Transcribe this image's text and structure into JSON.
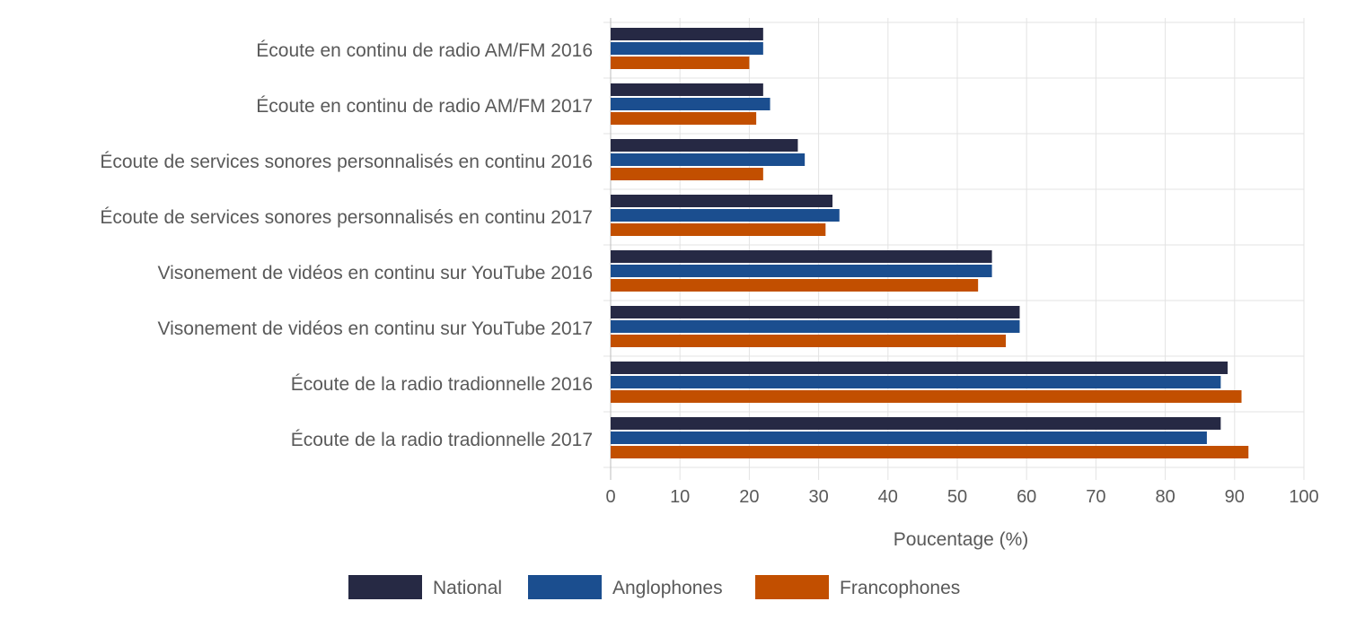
{
  "chart_data": {
    "type": "bar",
    "orientation": "horizontal",
    "categories": [
      "Écoute en continu de radio AM/FM 2016",
      "Écoute en continu de radio AM/FM 2017",
      "Écoute de services sonores personnalisés en continu 2016",
      "Écoute de services sonores personnalisés en continu 2017",
      "Visonement de vidéos en continu sur YouTube 2016",
      "Visonement de vidéos en continu sur YouTube 2017",
      "Écoute de la radio tradionnelle 2016",
      "Écoute de la radio tradionnelle 2017"
    ],
    "series": [
      {
        "name": "National",
        "color": "#262944",
        "values": [
          22,
          22,
          27,
          32,
          55,
          59,
          89,
          88
        ]
      },
      {
        "name": "Anglophones",
        "color": "#1b4e8f",
        "values": [
          22,
          23,
          28,
          33,
          55,
          59,
          88,
          86
        ]
      },
      {
        "name": "Francophones",
        "color": "#c24f00",
        "values": [
          20,
          21,
          22,
          31,
          53,
          57,
          91,
          92
        ]
      }
    ],
    "xlabel": "Poucentage (%)",
    "ylabel": "",
    "xlim": [
      0,
      100
    ],
    "xticks": [
      "0",
      "10",
      "20",
      "30",
      "40",
      "50",
      "60",
      "70",
      "80",
      "90",
      "100"
    ],
    "grid": true,
    "legend_position": "bottom"
  }
}
